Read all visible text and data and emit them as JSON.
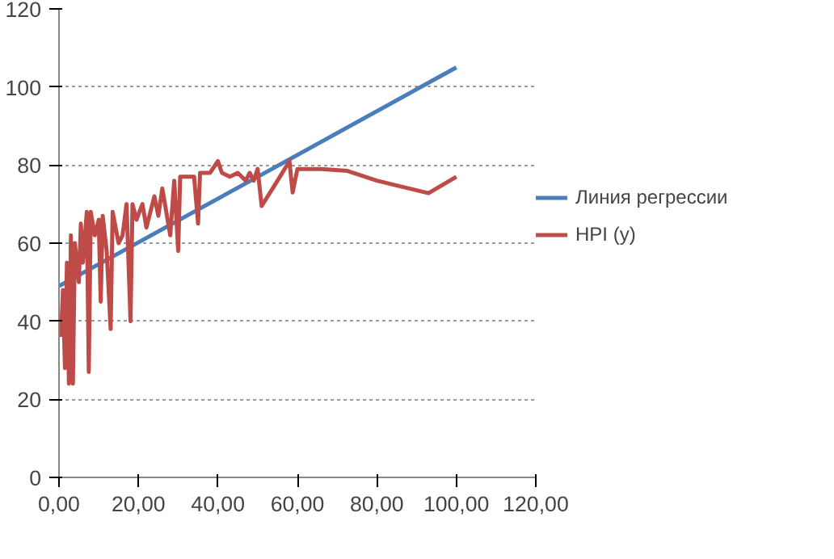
{
  "chart_data": {
    "type": "line",
    "xlim": [
      0,
      120
    ],
    "ylim": [
      0,
      120
    ],
    "xticks": [
      {
        "value": 0,
        "label": "0,00"
      },
      {
        "value": 20,
        "label": "20,00"
      },
      {
        "value": 40,
        "label": "40,00"
      },
      {
        "value": 60,
        "label": "60,00"
      },
      {
        "value": 80,
        "label": "80,00"
      },
      {
        "value": 100,
        "label": "100,00"
      },
      {
        "value": 120,
        "label": "120,00"
      }
    ],
    "yticks": [
      0,
      20,
      40,
      60,
      80,
      100,
      120
    ],
    "grid": "y",
    "legend": "right",
    "marker": "none",
    "line_style": "solid",
    "series": [
      {
        "name": "Линия регрессии",
        "color": "#4a7ebb",
        "x": [
          0,
          100
        ],
        "values": [
          49,
          105
        ]
      },
      {
        "name": "HPI (y)",
        "color": "#be4b48",
        "x": [
          0.5,
          1,
          1.5,
          2,
          2.5,
          3,
          3.5,
          4,
          5,
          5.5,
          6,
          7,
          7.5,
          8,
          9,
          10,
          10.5,
          11,
          12,
          13,
          13.5,
          15,
          16,
          17,
          18,
          18.5,
          19.5,
          21,
          22,
          24,
          25,
          26,
          27,
          28,
          29,
          30,
          30.5,
          32,
          34,
          35,
          35.5,
          38,
          40,
          41,
          43,
          45,
          47,
          48,
          49,
          50,
          51,
          55,
          58,
          58.8,
          60,
          66,
          72.6,
          80,
          93,
          100
        ],
        "values": [
          36,
          48,
          28,
          55,
          24,
          62,
          24,
          60,
          50,
          65,
          55,
          68,
          27,
          68,
          62,
          66,
          45,
          67,
          58,
          38,
          68,
          60,
          62,
          70,
          40,
          70,
          66,
          70,
          64,
          72,
          67,
          74,
          68,
          62,
          76,
          58,
          77,
          77,
          77,
          65,
          78,
          78,
          81,
          78,
          77,
          78,
          76,
          78,
          76,
          79,
          69.5,
          76,
          81,
          73,
          79,
          79,
          78.5,
          76,
          72.8,
          77
        ]
      }
    ]
  }
}
